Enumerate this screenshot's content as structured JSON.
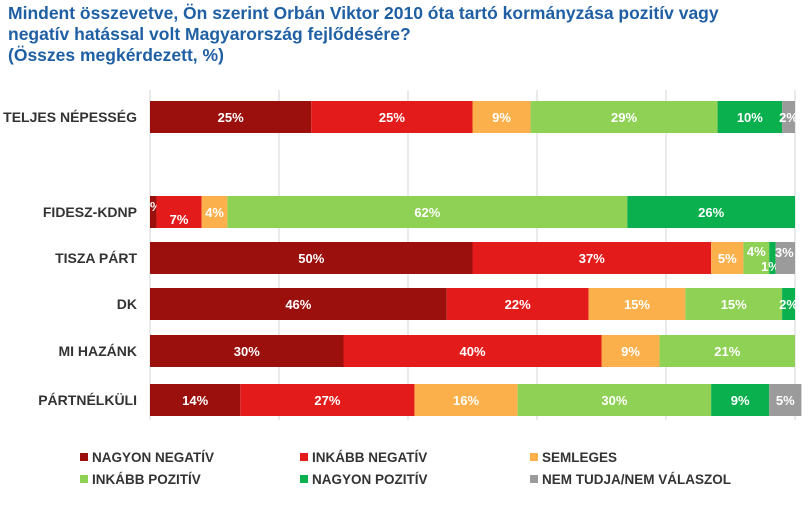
{
  "title": {
    "line1": "Mindent összevetve, Ön szerint Orbán Viktor 2010 óta tartó kormányzása pozitív vagy",
    "line2": "negatív hatással volt Magyarország fejlődésére?",
    "line3": "(Összes megkérdezett, %)"
  },
  "colors": {
    "nagyon_negativ": "#9b0f0c",
    "inkabb_negativ": "#e31b1b",
    "semleges": "#fbb04c",
    "inkabb_pozitiv": "#8ed154",
    "nagyon_pozitiv": "#09b04d",
    "nem_tudja": "#9b9b9b"
  },
  "chart_data": {
    "type": "bar",
    "orientation": "horizontal",
    "stacked": true,
    "unit": "%",
    "categories": [
      "TELJES NÉPESSÉG",
      "FIDESZ-KDNP",
      "TISZA PÁRT",
      "DK",
      "MI HAZÁNK",
      "PÁRTNÉLKÜLI"
    ],
    "series": [
      {
        "name": "NAGYON NEGATÍV",
        "values": [
          25,
          1,
          50,
          46,
          30,
          14
        ],
        "labels": [
          "25%",
          "1%",
          "50%",
          "46%",
          "30%",
          "14%"
        ]
      },
      {
        "name": "INKÁBB NEGATÍV",
        "values": [
          25,
          7,
          37,
          22,
          40,
          27
        ],
        "labels": [
          "25%",
          "7%",
          "37%",
          "22%",
          "40%",
          "27%"
        ]
      },
      {
        "name": "SEMLEGES",
        "values": [
          9,
          4,
          5,
          15,
          9,
          16
        ],
        "labels": [
          "9%",
          "4%",
          "5%",
          "15%",
          "9%",
          "16%"
        ]
      },
      {
        "name": "INKÁBB POZITÍV",
        "values": [
          29,
          62,
          4,
          15,
          21,
          30
        ],
        "labels": [
          "29%",
          "62%",
          "4%",
          "15%",
          "21%",
          "30%"
        ]
      },
      {
        "name": "NAGYON POZITÍV",
        "values": [
          10,
          26,
          1,
          2,
          0,
          9
        ],
        "labels": [
          "10%",
          "26%",
          "1%",
          "2%",
          "",
          "9%"
        ]
      },
      {
        "name": "NEM TUDJA/NEM VÁLASZOL",
        "values": [
          2,
          0,
          3,
          0,
          0,
          5
        ],
        "labels": [
          "2%",
          "",
          "3%",
          "",
          "",
          "5%"
        ]
      }
    ],
    "xlim": [
      0,
      100
    ],
    "grid": true,
    "legend_position": "bottom"
  }
}
